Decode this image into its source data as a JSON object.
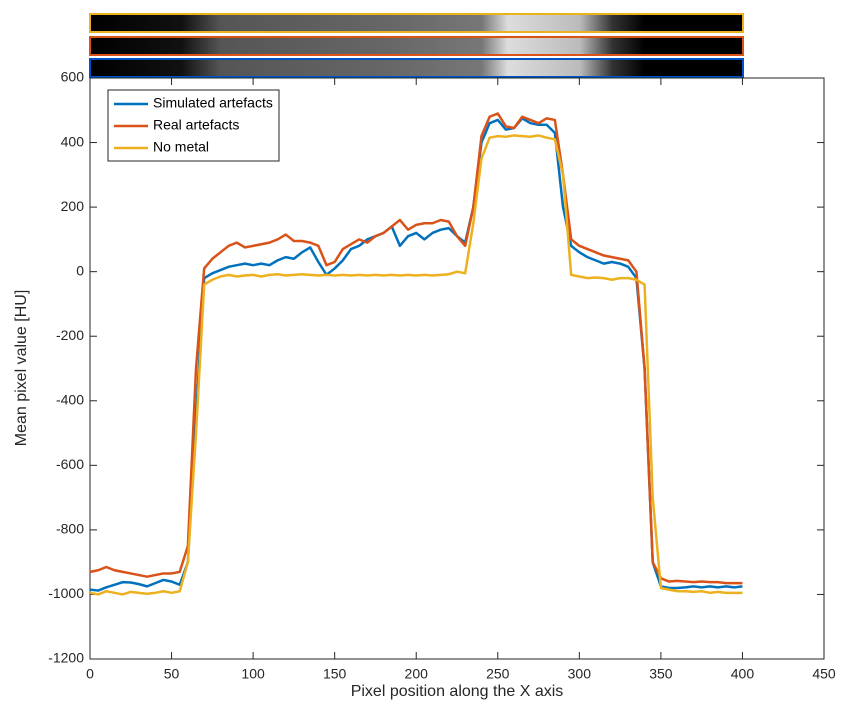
{
  "chart_data": {
    "type": "line",
    "xlabel": "Pixel position along the X axis",
    "ylabel": "Mean pixel value [HU]",
    "xlim": [
      0,
      450
    ],
    "xticks": [
      0,
      50,
      100,
      150,
      200,
      250,
      300,
      350,
      400,
      450
    ],
    "ylim": [
      -1200,
      600
    ],
    "yticks": [
      -1200,
      -1000,
      -800,
      -600,
      -400,
      -200,
      0,
      200,
      400,
      600
    ],
    "legend": "upper left",
    "x": [
      0,
      5,
      10,
      15,
      20,
      25,
      30,
      35,
      40,
      45,
      50,
      55,
      60,
      65,
      70,
      75,
      80,
      85,
      90,
      95,
      100,
      105,
      110,
      115,
      120,
      125,
      130,
      135,
      140,
      145,
      150,
      155,
      160,
      165,
      170,
      175,
      180,
      185,
      190,
      195,
      200,
      205,
      210,
      215,
      220,
      225,
      230,
      235,
      240,
      245,
      250,
      255,
      260,
      265,
      270,
      275,
      280,
      285,
      290,
      295,
      300,
      305,
      310,
      315,
      320,
      325,
      330,
      335,
      340,
      345,
      350,
      355,
      360,
      365,
      370,
      375,
      380,
      385,
      390,
      395,
      400
    ],
    "series": [
      {
        "name": "Simulated artefacts",
        "color": "#0072bd",
        "values": [
          -985,
          -988,
          -978,
          -970,
          -962,
          -963,
          -968,
          -975,
          -965,
          -955,
          -960,
          -970,
          -900,
          -450,
          -20,
          -5,
          5,
          15,
          20,
          25,
          20,
          25,
          20,
          35,
          45,
          40,
          60,
          75,
          30,
          -10,
          10,
          35,
          70,
          80,
          100,
          110,
          120,
          140,
          80,
          110,
          120,
          100,
          120,
          130,
          135,
          110,
          90,
          200,
          400,
          460,
          470,
          440,
          445,
          475,
          460,
          455,
          455,
          430,
          200,
          80,
          60,
          45,
          35,
          25,
          30,
          25,
          15,
          -20,
          -300,
          -900,
          -975,
          -980,
          -980,
          -978,
          -975,
          -978,
          -975,
          -978,
          -975,
          -978,
          -975
        ]
      },
      {
        "name": "Real artefacts",
        "color": "#d95319",
        "values": [
          -930,
          -925,
          -915,
          -925,
          -930,
          -935,
          -940,
          -945,
          -940,
          -935,
          -935,
          -930,
          -850,
          -300,
          10,
          40,
          60,
          80,
          90,
          75,
          80,
          85,
          90,
          100,
          115,
          95,
          95,
          90,
          80,
          20,
          30,
          70,
          85,
          100,
          90,
          110,
          120,
          140,
          160,
          130,
          145,
          150,
          150,
          160,
          155,
          110,
          80,
          200,
          420,
          480,
          490,
          450,
          445,
          480,
          470,
          460,
          475,
          470,
          300,
          100,
          80,
          70,
          60,
          50,
          45,
          40,
          35,
          0,
          -300,
          -900,
          -950,
          -960,
          -958,
          -960,
          -962,
          -960,
          -962,
          -962,
          -965,
          -965,
          -965
        ]
      },
      {
        "name": "No metal",
        "color": "#edb120",
        "values": [
          -995,
          -1000,
          -990,
          -995,
          -1000,
          -992,
          -995,
          -998,
          -995,
          -990,
          -995,
          -990,
          -900,
          -500,
          -40,
          -25,
          -15,
          -10,
          -15,
          -12,
          -10,
          -15,
          -10,
          -8,
          -12,
          -10,
          -8,
          -10,
          -12,
          -10,
          -12,
          -10,
          -12,
          -10,
          -12,
          -10,
          -12,
          -10,
          -12,
          -10,
          -12,
          -10,
          -12,
          -10,
          -8,
          0,
          -5,
          150,
          350,
          415,
          420,
          418,
          422,
          420,
          418,
          422,
          415,
          410,
          300,
          -10,
          -15,
          -20,
          -18,
          -20,
          -25,
          -20,
          -20,
          -25,
          -40,
          -700,
          -980,
          -985,
          -990,
          -990,
          -992,
          -990,
          -995,
          -992,
          -995,
          -995,
          -995
        ]
      }
    ]
  }
}
